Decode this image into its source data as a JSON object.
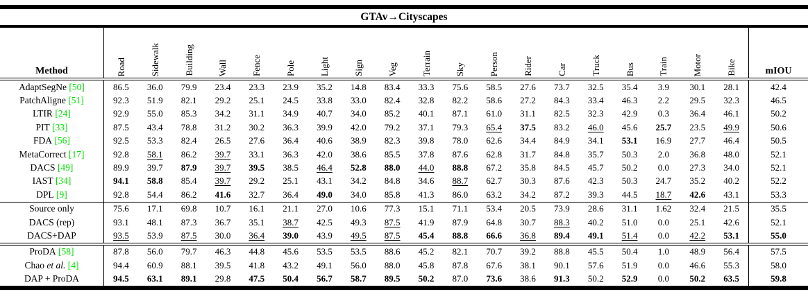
{
  "title": "GTAv→Cityscapes",
  "header": {
    "method_label": "Method",
    "miou_label": "mIOU",
    "classes": [
      "Road",
      "Sidewalk",
      "Building",
      "Wall",
      "Fence",
      "Pole",
      "Light",
      "Sign",
      "Veg",
      "Terrain",
      "Sky",
      "Person",
      "Rider",
      "Car",
      "Truck",
      "Bus",
      "Train",
      "Motor",
      "Bike"
    ]
  },
  "colors": {
    "citation_green": "#00dd00"
  },
  "groups": [
    {
      "rows": [
        {
          "method": {
            "text": "AdaptSegNe",
            "cite": "[50]"
          },
          "cells": [
            "86.5",
            "36.0",
            "79.9",
            "23.4",
            "23.3",
            "23.9",
            "35.2",
            "14.8",
            "83.4",
            "33.3",
            "75.6",
            "58.5",
            "27.6",
            "73.7",
            "32.5",
            "35.4",
            "3.9",
            "30.1",
            "28.1",
            "42.4"
          ]
        },
        {
          "method": {
            "text": "PatchAligne",
            "cite": "[51]"
          },
          "cells": [
            "92.3",
            "51.9",
            "82.1",
            "29.2",
            "25.1",
            "24.5",
            "33.8",
            "33.0",
            "82.4",
            "32.8",
            "82.2",
            "58.6",
            "27.2",
            "84.3",
            "33.4",
            "46.3",
            "2.2",
            "29.5",
            "32.3",
            "46.5"
          ]
        },
        {
          "method": {
            "text": "LTIR",
            "cite": "[24]"
          },
          "cells": [
            "92.9",
            "55.0",
            "85.3",
            "34.2",
            "31.1",
            "34.9",
            "40.7",
            "34.0",
            "85.2",
            "40.1",
            "87.1",
            "61.0",
            "31.1",
            "82.5",
            "32.3",
            "42.9",
            "0.3",
            "36.4",
            "46.1",
            "50.2"
          ]
        },
        {
          "method": {
            "text": "PIT",
            "cite": "[33]"
          },
          "cells": [
            "87.5",
            "43.4",
            "78.8",
            "31.2",
            "30.2",
            "36.3",
            "39.9",
            "42.0",
            "79.2",
            "37.1",
            "79.3",
            "u:65.4",
            "b:37.5",
            "83.2",
            "u:46.0",
            "45.6",
            "b:25.7",
            "23.5",
            "u:49.9",
            "50.6"
          ]
        },
        {
          "method": {
            "text": "FDA",
            "cite": "[56]"
          },
          "cells": [
            "92.5",
            "53.3",
            "82.4",
            "26.5",
            "27.6",
            "36.4",
            "40.6",
            "38.9",
            "82.3",
            "39.8",
            "78.0",
            "62.6",
            "34.4",
            "84.9",
            "34.1",
            "b:53.1",
            "16.9",
            "27.7",
            "46.4",
            "50.5"
          ]
        },
        {
          "method": {
            "text": "MetaCorrect",
            "cite": "[17]"
          },
          "cells": [
            "92.8",
            "u:58.1",
            "86.2",
            "u:39.7",
            "33.1",
            "36.3",
            "42.0",
            "38.6",
            "85.5",
            "37.8",
            "87.6",
            "62.8",
            "31.7",
            "84.8",
            "35.7",
            "50.3",
            "2.0",
            "36.8",
            "48.0",
            "52.1"
          ]
        },
        {
          "method": {
            "text": "DACS",
            "cite": "[49]"
          },
          "cells": [
            "89.9",
            "39.7",
            "b:87.9",
            "u:39.7",
            "b:39.5",
            "38.5",
            "u:46.4",
            "b:52.8",
            "b:88.0",
            "u:44.0",
            "b:88.8",
            "67.2",
            "35.8",
            "84.5",
            "45.7",
            "50.2",
            "0.0",
            "27.3",
            "34.0",
            "52.1"
          ]
        },
        {
          "method": {
            "text": "IAST",
            "cite": "[34]"
          },
          "cells": [
            "b:94.1",
            "b:58.8",
            "85.4",
            "u:39.7",
            "29.2",
            "25.1",
            "43.1",
            "34.2",
            "84.8",
            "34.6",
            "u:88.7",
            "62.7",
            "30.3",
            "87.6",
            "42.3",
            "50.3",
            "24.7",
            "35.2",
            "40.2",
            "52.2"
          ]
        },
        {
          "method": {
            "text": "DPL",
            "cite": "[9]"
          },
          "cells": [
            "92.8",
            "54.4",
            "86.2",
            "b:41.6",
            "32.7",
            "36.4",
            "b:49.0",
            "34.0",
            "85.8",
            "41.3",
            "86.0",
            "63.2",
            "34.2",
            "87.2",
            "39.3",
            "44.5",
            "u:18.7",
            "b:42.6",
            "43.1",
            "53.3"
          ]
        }
      ]
    },
    {
      "rows": [
        {
          "method": {
            "text": "Source only"
          },
          "cells": [
            "75.6",
            "17.1",
            "69.8",
            "10.7",
            "16.1",
            "21.1",
            "27.0",
            "10.6",
            "77.3",
            "15.1",
            "71.1",
            "53.4",
            "20.5",
            "73.9",
            "28.6",
            "31.1",
            "1.62",
            "32.4",
            "21.5",
            "35.5"
          ]
        },
        {
          "method": {
            "text": "DACS (rep)"
          },
          "cells": [
            "93.1",
            "48.1",
            "87.3",
            "36.7",
            "35.1",
            "u:38.7",
            "42.5",
            "49.3",
            "u:87.5",
            "41.9",
            "87.9",
            "64.8",
            "30.7",
            "u:88.3",
            "40.2",
            "51.0",
            "0.0",
            "25.1",
            "42.6",
            "52.1"
          ]
        },
        {
          "method": {
            "text": "DACS+DAP"
          },
          "cells": [
            "u:93.5",
            "53.9",
            "u:87.5",
            "30.0",
            "u:36.4",
            "b:39.0",
            "43.9",
            "u:49.5",
            "u:87.5",
            "b:45.4",
            "b:88.8",
            "b:66.6",
            "u:36.8",
            "b:89.4",
            "b:49.1",
            "u:51.4",
            "0.0",
            "u:42.2",
            "b:53.1",
            "b:55.0"
          ]
        }
      ]
    },
    {
      "rows": [
        {
          "method": {
            "text": "ProDA",
            "cite": "[58]"
          },
          "cells": [
            "87.8",
            "56.0",
            "79.7",
            "46.3",
            "44.8",
            "45.6",
            "53.5",
            "53.5",
            "88.6",
            "45.2",
            "82.1",
            "70.7",
            "39.2",
            "88.8",
            "45.5",
            "50.4",
            "1.0",
            "48.9",
            "56.4",
            "57.5"
          ]
        },
        {
          "method": {
            "text": "Chao",
            "italic": "et al.",
            "cite": "[4]"
          },
          "cells": [
            "94.4",
            "60.9",
            "88.1",
            "39.5",
            "41.8",
            "43.2",
            "49.1",
            "56.0",
            "88.0",
            "45.8",
            "87.8",
            "67.6",
            "38.1",
            "90.1",
            "57.6",
            "51.9",
            "0.0",
            "46.6",
            "55.3",
            "58.0"
          ]
        },
        {
          "method": {
            "text": "DAP + ProDA"
          },
          "cells": [
            "b:94.5",
            "b:63.1",
            "b:89.1",
            "29.8",
            "b:47.5",
            "b:50.4",
            "b:56.7",
            "b:58.7",
            "b:89.5",
            "b:50.2",
            "87.0",
            "b:73.6",
            "38.6",
            "b:91.3",
            "50.2",
            "b:52.9",
            "0.0",
            "b:50.2",
            "b:63.5",
            "b:59.8"
          ]
        }
      ]
    }
  ]
}
